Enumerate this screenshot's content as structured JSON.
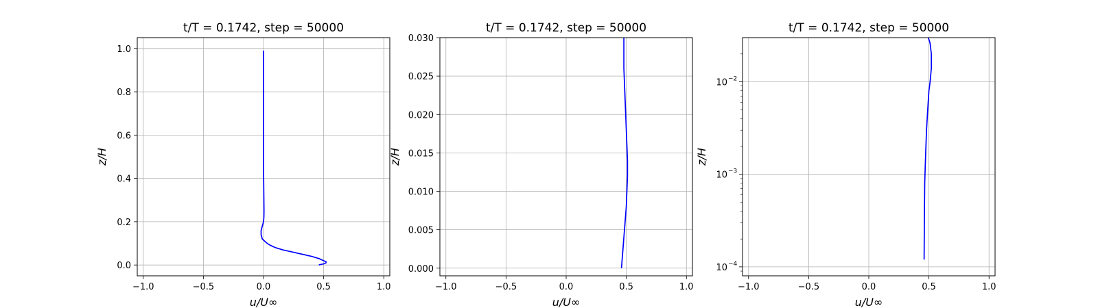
{
  "chart_data": [
    {
      "type": "line",
      "title": "t/T = 0.1742, step = 50000",
      "xlabel": "u/U∞",
      "ylabel": "z/H",
      "xlim": [
        -1.05,
        1.05
      ],
      "ylim": [
        -0.05,
        1.05
      ],
      "yscale": "linear",
      "grid": true,
      "xticks": [
        -1.0,
        -0.5,
        0.0,
        0.5,
        1.0
      ],
      "xtick_labels": [
        "−1.0",
        "−0.5",
        "0.0",
        "0.5",
        "1.0"
      ],
      "yticks": [
        0.0,
        0.2,
        0.4,
        0.6,
        0.8,
        1.0
      ],
      "ytick_labels": [
        "0.0",
        "0.2",
        "0.4",
        "0.6",
        "0.8",
        "1.0"
      ],
      "series": [
        {
          "color": "#0000ff",
          "x": [
            0.46,
            0.47,
            0.5,
            0.52,
            0.52,
            0.5,
            0.46,
            0.4,
            0.32,
            0.24,
            0.16,
            0.1,
            0.06,
            0.03,
            0.01,
            -0.01,
            -0.02,
            -0.02,
            -0.01,
            0.0,
            0.003,
            0.004,
            0.003,
            0.002,
            0.001,
            0.0,
            0.0,
            0.0,
            0.0,
            0.0,
            0.0,
            0.0,
            0.0
          ],
          "y": [
            0.0,
            0.002,
            0.005,
            0.01,
            0.015,
            0.02,
            0.03,
            0.04,
            0.05,
            0.06,
            0.07,
            0.08,
            0.09,
            0.1,
            0.11,
            0.12,
            0.14,
            0.16,
            0.18,
            0.2,
            0.22,
            0.25,
            0.3,
            0.35,
            0.4,
            0.45,
            0.5,
            0.6,
            0.7,
            0.8,
            0.9,
            0.95,
            0.99
          ]
        }
      ]
    },
    {
      "type": "line",
      "title": "t/T = 0.1742, step = 50000",
      "xlabel": "u/U∞",
      "ylabel": "z/H",
      "xlim": [
        -1.05,
        1.05
      ],
      "ylim": [
        -0.001,
        0.03
      ],
      "yscale": "linear",
      "grid": true,
      "xticks": [
        -1.0,
        -0.5,
        0.0,
        0.5,
        1.0
      ],
      "xtick_labels": [
        "−1.0",
        "−0.5",
        "0.0",
        "0.5",
        "1.0"
      ],
      "yticks": [
        0.0,
        0.005,
        0.01,
        0.015,
        0.02,
        0.025,
        0.03
      ],
      "ytick_labels": [
        "0.000",
        "0.005",
        "0.010",
        "0.015",
        "0.020",
        "0.025",
        "0.030"
      ],
      "series": [
        {
          "color": "#0000ff",
          "x": [
            0.46,
            0.47,
            0.48,
            0.49,
            0.5,
            0.505,
            0.51,
            0.51,
            0.505,
            0.5,
            0.495,
            0.49,
            0.485,
            0.48,
            0.48
          ],
          "y": [
            0.0,
            0.002,
            0.004,
            0.006,
            0.008,
            0.01,
            0.012,
            0.014,
            0.016,
            0.018,
            0.02,
            0.022,
            0.024,
            0.026,
            0.03
          ]
        }
      ]
    },
    {
      "type": "line",
      "title": "t/T = 0.1742, step = 50000",
      "xlabel": "u/U∞",
      "ylabel": "z/H",
      "xlim": [
        -1.05,
        1.05
      ],
      "ylim": [
        8e-05,
        0.03
      ],
      "yscale": "log",
      "grid": true,
      "xticks": [
        -1.0,
        -0.5,
        0.0,
        0.5,
        1.0
      ],
      "xtick_labels": [
        "−1.0",
        "−0.5",
        "0.0",
        "0.5",
        "1.0"
      ],
      "yticks": [
        0.0001,
        0.001,
        0.01
      ],
      "ytick_labels": [
        "10",
        "10",
        "10"
      ],
      "ytick_exponents": [
        "−4",
        "−3",
        "−2"
      ],
      "series": [
        {
          "color": "#0000ff",
          "x": [
            0.46,
            0.462,
            0.465,
            0.47,
            0.48,
            0.49,
            0.5,
            0.51,
            0.52,
            0.52,
            0.51,
            0.495
          ],
          "y": [
            0.00012,
            0.0003,
            0.0008,
            0.0013,
            0.003,
            0.005,
            0.008,
            0.01,
            0.014,
            0.02,
            0.026,
            0.03
          ]
        }
      ]
    }
  ]
}
